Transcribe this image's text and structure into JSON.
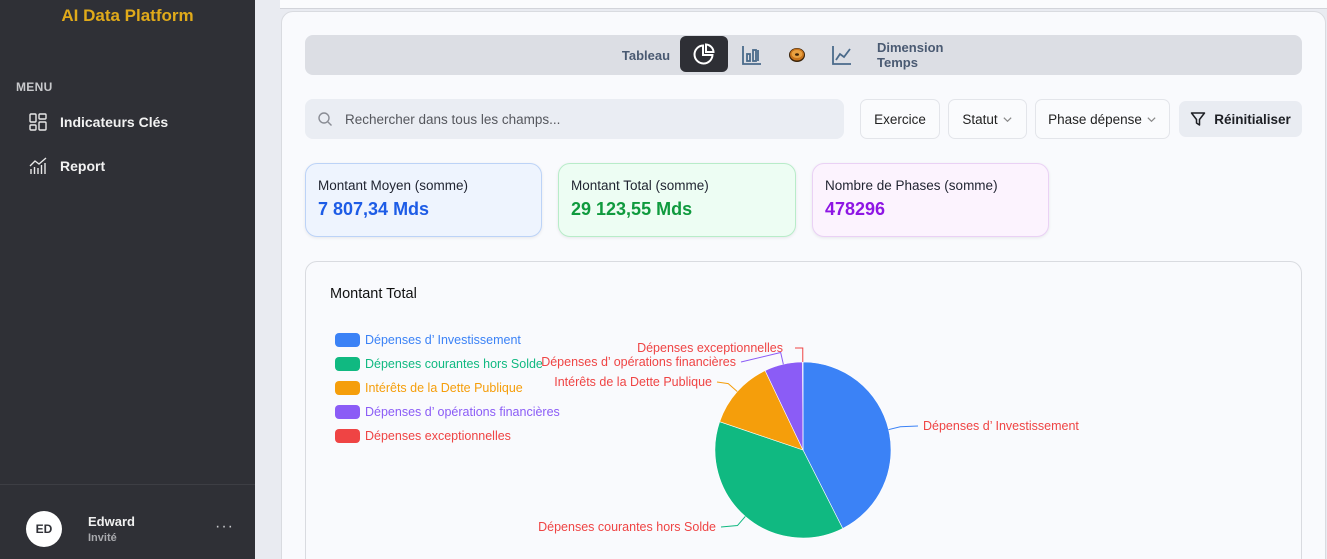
{
  "sidebar": {
    "brand": "AI Data Platform",
    "menu_label": "MENU",
    "items": [
      {
        "label": "Indicateurs Clés",
        "icon": "dashboard-grid-icon"
      },
      {
        "label": "Report",
        "icon": "chart-report-icon"
      }
    ],
    "user": {
      "initials": "ED",
      "name": "Edward",
      "role": "Invité",
      "more": "···"
    }
  },
  "toolbar": {
    "tableau": "Tableau",
    "pie_icon": "pie-chart-icon",
    "bar_icon": "bar-chart-icon",
    "donut_icon": "donut-icon",
    "line_icon": "line-chart-icon",
    "dimension": "Dimension Temps",
    "active": "pie"
  },
  "search": {
    "placeholder": "Rechercher dans tous les champs...",
    "value": ""
  },
  "filters": {
    "exercice": "Exercice",
    "statut": "Statut",
    "phase": "Phase dépense",
    "reset": "Réinitialiser"
  },
  "kpis": [
    {
      "label": "Montant Moyen (somme)",
      "value": "7 807,34 Mds",
      "color": "#1d5ce6"
    },
    {
      "label": "Montant Total (somme)",
      "value": "29 123,55 Mds",
      "color": "#0f9a3e"
    },
    {
      "label": "Nombre de Phases (somme)",
      "value": "478296",
      "color": "#8e16e4"
    }
  ],
  "chart": {
    "title": "Montant Total"
  },
  "chart_data": {
    "type": "pie",
    "title": "Montant Total",
    "categories": [
      "Dépenses d’ Investissement",
      "Dépenses courantes hors Solde",
      "Intérêts de la Dette Publique",
      "Dépenses d’ opérations financières",
      "Dépenses exceptionnelles"
    ],
    "values": [
      12390,
      10970,
      3700,
      2040,
      24
    ],
    "colors": [
      "#3b82f6",
      "#10b981",
      "#f59e0b",
      "#8b5cf6",
      "#ef4444"
    ],
    "legend_position": "top-left",
    "label_color": "#ef4444"
  }
}
